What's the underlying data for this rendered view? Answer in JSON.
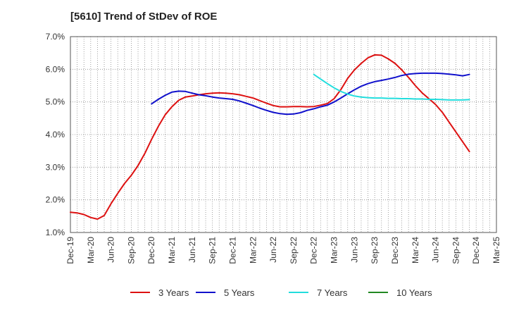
{
  "title": "[5610]  Trend of StDev of ROE",
  "chart_data": {
    "type": "line",
    "title": "[5610]  Trend of StDev of ROE",
    "xlabel": "",
    "ylabel": "",
    "ylim": [
      1.0,
      7.0
    ],
    "y_ticks": [
      "1.0%",
      "2.0%",
      "3.0%",
      "4.0%",
      "5.0%",
      "6.0%",
      "7.0%"
    ],
    "y_tick_values": [
      1,
      2,
      3,
      4,
      5,
      6,
      7
    ],
    "x_ticks": [
      "Dec-19",
      "Mar-20",
      "Jun-20",
      "Sep-20",
      "Dec-20",
      "Mar-21",
      "Jun-21",
      "Sep-21",
      "Dec-21",
      "Mar-22",
      "Jun-22",
      "Sep-22",
      "Dec-22",
      "Mar-23",
      "Jun-23",
      "Sep-23",
      "Dec-23",
      "Mar-24",
      "Jun-24",
      "Sep-24",
      "Dec-24",
      "Mar-25"
    ],
    "grid": true,
    "legend_position": "bottom",
    "series": [
      {
        "name": "3 Years",
        "color": "#dd1111",
        "points": [
          [
            "Dec-19",
            1.62
          ],
          [
            "Jan-20",
            1.6
          ],
          [
            "Feb-20",
            1.55
          ],
          [
            "Mar-20",
            1.46
          ],
          [
            "Apr-20",
            1.41
          ],
          [
            "May-20",
            1.52
          ],
          [
            "Jun-20",
            1.88
          ],
          [
            "Jul-20",
            2.2
          ],
          [
            "Aug-20",
            2.5
          ],
          [
            "Sep-20",
            2.75
          ],
          [
            "Oct-20",
            3.05
          ],
          [
            "Nov-20",
            3.42
          ],
          [
            "Dec-20",
            3.85
          ],
          [
            "Jan-21",
            4.25
          ],
          [
            "Feb-21",
            4.6
          ],
          [
            "Mar-21",
            4.85
          ],
          [
            "Apr-21",
            5.05
          ],
          [
            "May-21",
            5.15
          ],
          [
            "Jun-21",
            5.18
          ],
          [
            "Jul-21",
            5.22
          ],
          [
            "Aug-21",
            5.25
          ],
          [
            "Sep-21",
            5.27
          ],
          [
            "Oct-21",
            5.28
          ],
          [
            "Nov-21",
            5.27
          ],
          [
            "Dec-21",
            5.25
          ],
          [
            "Jan-22",
            5.22
          ],
          [
            "Feb-22",
            5.17
          ],
          [
            "Mar-22",
            5.12
          ],
          [
            "Apr-22",
            5.04
          ],
          [
            "May-22",
            4.96
          ],
          [
            "Jun-22",
            4.89
          ],
          [
            "Jul-22",
            4.85
          ],
          [
            "Aug-22",
            4.85
          ],
          [
            "Sep-22",
            4.86
          ],
          [
            "Oct-22",
            4.86
          ],
          [
            "Nov-22",
            4.85
          ],
          [
            "Dec-22",
            4.86
          ],
          [
            "Jan-23",
            4.9
          ],
          [
            "Feb-23",
            4.95
          ],
          [
            "Mar-23",
            5.1
          ],
          [
            "Apr-23",
            5.38
          ],
          [
            "May-23",
            5.72
          ],
          [
            "Jun-23",
            5.98
          ],
          [
            "Jul-23",
            6.18
          ],
          [
            "Aug-23",
            6.35
          ],
          [
            "Sep-23",
            6.44
          ],
          [
            "Oct-23",
            6.43
          ],
          [
            "Nov-23",
            6.32
          ],
          [
            "Dec-23",
            6.18
          ],
          [
            "Jan-24",
            5.98
          ],
          [
            "Feb-24",
            5.75
          ],
          [
            "Mar-24",
            5.5
          ],
          [
            "Apr-24",
            5.28
          ],
          [
            "May-24",
            5.1
          ],
          [
            "Jun-24",
            4.92
          ],
          [
            "Jul-24",
            4.68
          ],
          [
            "Aug-24",
            4.38
          ],
          [
            "Sep-24",
            4.08
          ],
          [
            "Oct-24",
            3.78
          ],
          [
            "Nov-24",
            3.48
          ]
        ]
      },
      {
        "name": "5 Years",
        "color": "#1111cc",
        "points": [
          [
            "Dec-20",
            4.94
          ],
          [
            "Jan-21",
            5.08
          ],
          [
            "Feb-21",
            5.2
          ],
          [
            "Mar-21",
            5.3
          ],
          [
            "Apr-21",
            5.33
          ],
          [
            "May-21",
            5.32
          ],
          [
            "Jun-21",
            5.27
          ],
          [
            "Jul-21",
            5.22
          ],
          [
            "Aug-21",
            5.19
          ],
          [
            "Sep-21",
            5.15
          ],
          [
            "Oct-21",
            5.12
          ],
          [
            "Nov-21",
            5.1
          ],
          [
            "Dec-21",
            5.08
          ],
          [
            "Jan-22",
            5.03
          ],
          [
            "Feb-22",
            4.96
          ],
          [
            "Mar-22",
            4.89
          ],
          [
            "Apr-22",
            4.81
          ],
          [
            "May-22",
            4.74
          ],
          [
            "Jun-22",
            4.68
          ],
          [
            "Jul-22",
            4.64
          ],
          [
            "Aug-22",
            4.62
          ],
          [
            "Sep-22",
            4.63
          ],
          [
            "Oct-22",
            4.67
          ],
          [
            "Nov-22",
            4.74
          ],
          [
            "Dec-22",
            4.79
          ],
          [
            "Jan-23",
            4.85
          ],
          [
            "Feb-23",
            4.9
          ],
          [
            "Mar-23",
            5.0
          ],
          [
            "Apr-23",
            5.12
          ],
          [
            "May-23",
            5.25
          ],
          [
            "Jun-23",
            5.37
          ],
          [
            "Jul-23",
            5.48
          ],
          [
            "Aug-23",
            5.56
          ],
          [
            "Sep-23",
            5.62
          ],
          [
            "Oct-23",
            5.66
          ],
          [
            "Nov-23",
            5.7
          ],
          [
            "Dec-23",
            5.75
          ],
          [
            "Jan-24",
            5.81
          ],
          [
            "Feb-24",
            5.85
          ],
          [
            "Mar-24",
            5.87
          ],
          [
            "Apr-24",
            5.88
          ],
          [
            "May-24",
            5.88
          ],
          [
            "Jun-24",
            5.88
          ],
          [
            "Jul-24",
            5.87
          ],
          [
            "Aug-24",
            5.85
          ],
          [
            "Sep-24",
            5.83
          ],
          [
            "Oct-24",
            5.8
          ],
          [
            "Nov-24",
            5.84
          ]
        ]
      },
      {
        "name": "7 Years",
        "color": "#22dddd",
        "points": [
          [
            "Dec-22",
            5.84
          ],
          [
            "Jan-23",
            5.7
          ],
          [
            "Feb-23",
            5.56
          ],
          [
            "Mar-23",
            5.43
          ],
          [
            "Apr-23",
            5.32
          ],
          [
            "May-23",
            5.24
          ],
          [
            "Jun-23",
            5.18
          ],
          [
            "Jul-23",
            5.15
          ],
          [
            "Aug-23",
            5.13
          ],
          [
            "Sep-23",
            5.12
          ],
          [
            "Oct-23",
            5.12
          ],
          [
            "Nov-23",
            5.11
          ],
          [
            "Dec-23",
            5.11
          ],
          [
            "Jan-24",
            5.1
          ],
          [
            "Feb-24",
            5.1
          ],
          [
            "Mar-24",
            5.09
          ],
          [
            "Apr-24",
            5.09
          ],
          [
            "May-24",
            5.08
          ],
          [
            "Jun-24",
            5.08
          ],
          [
            "Jul-24",
            5.07
          ],
          [
            "Aug-24",
            5.06
          ],
          [
            "Sep-24",
            5.06
          ],
          [
            "Oct-24",
            5.06
          ],
          [
            "Nov-24",
            5.07
          ]
        ]
      },
      {
        "name": "10 Years",
        "color": "#228822",
        "points": []
      }
    ]
  }
}
